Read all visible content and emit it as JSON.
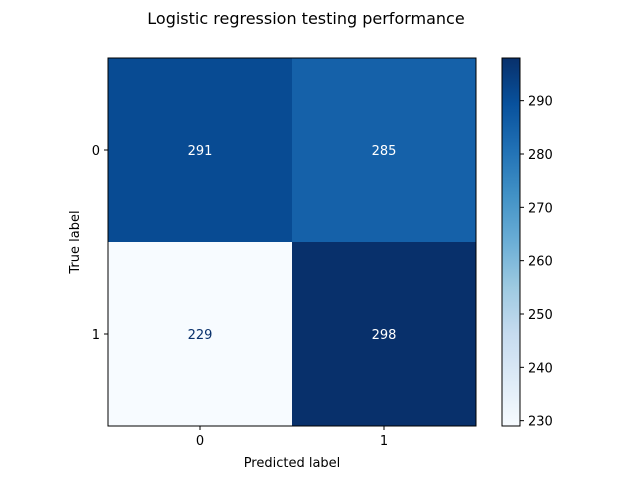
{
  "chart_data": {
    "type": "heatmap",
    "title": "Logistic regression testing performance",
    "xlabel": "Predicted label",
    "ylabel": "True label",
    "x_categories": [
      "0",
      "1"
    ],
    "y_categories": [
      "0",
      "1"
    ],
    "matrix": [
      [
        291,
        285
      ],
      [
        229,
        298
      ]
    ],
    "colormap": "Blues",
    "color_range": [
      229,
      298
    ],
    "colorbar_ticks": [
      230,
      240,
      250,
      260,
      270,
      280,
      290
    ],
    "cell_label_colors": {
      "light": "#08306b",
      "dark": "#ffffff"
    },
    "grid": false
  }
}
